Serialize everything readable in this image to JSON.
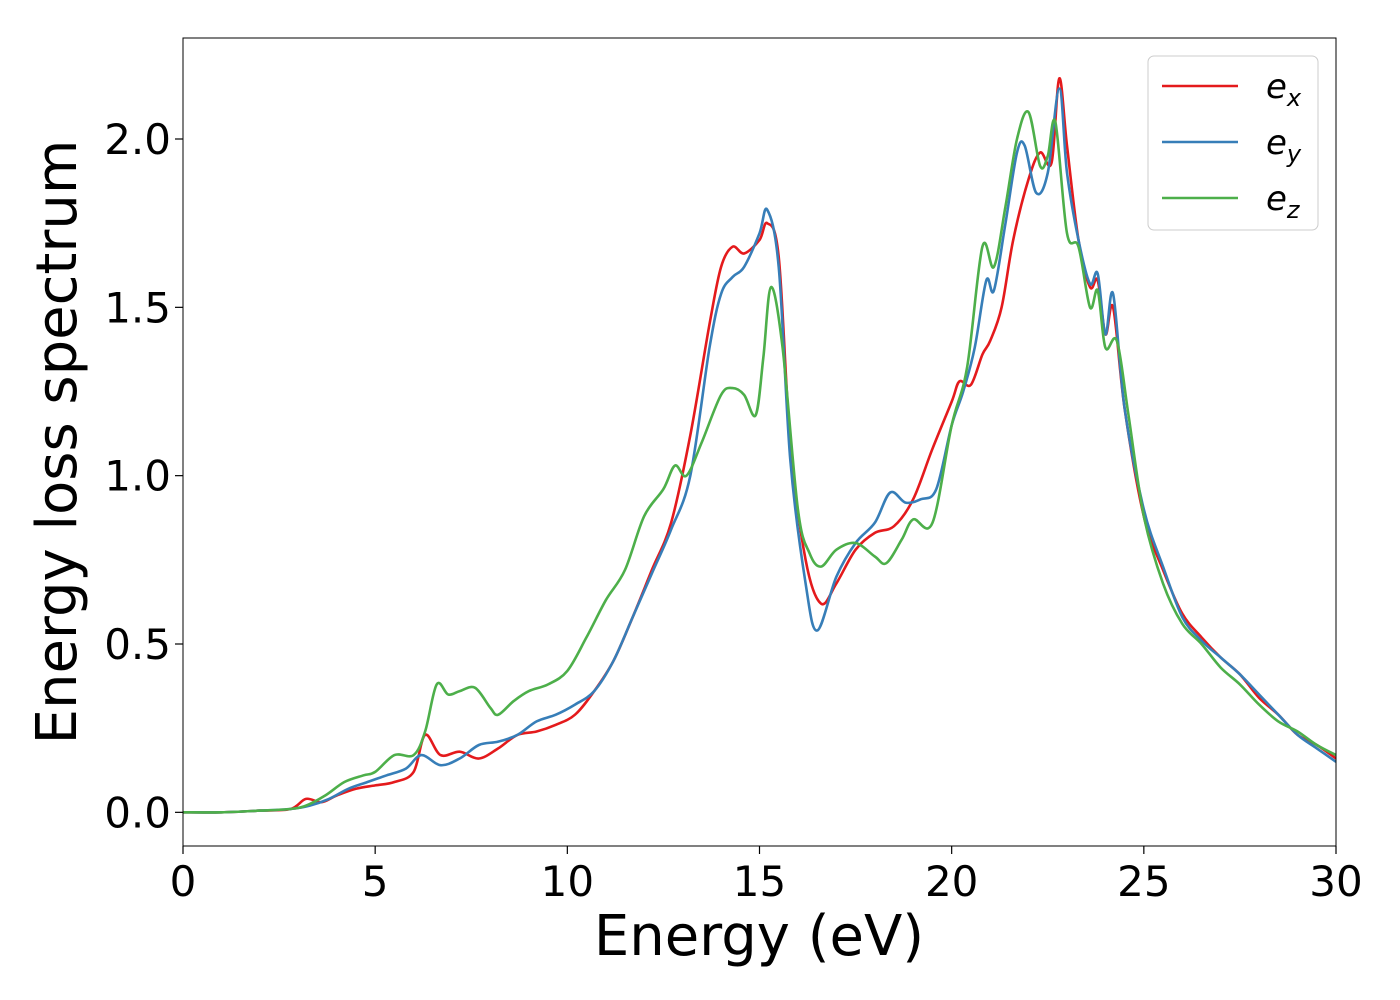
{
  "chart_data": {
    "type": "line",
    "title": "",
    "xlabel": "Energy (eV)",
    "ylabel": "Energy loss spectrum",
    "xlim": [
      0,
      30
    ],
    "ylim": [
      -0.1,
      2.3
    ],
    "xticks": [
      0,
      5,
      10,
      15,
      20,
      25,
      30
    ],
    "xtick_labels": [
      "0",
      "5",
      "10",
      "15",
      "20",
      "25",
      "30"
    ],
    "yticks": [
      0.0,
      0.5,
      1.0,
      1.5,
      2.0
    ],
    "ytick_labels": [
      "0.0",
      "0.5",
      "1.0",
      "1.5",
      "2.0"
    ],
    "grid": false,
    "legend_position": "top-right",
    "series": [
      {
        "name": "e_x",
        "legend_main": "e",
        "legend_sub": "x",
        "color": "#e41a1c",
        "x": [
          0,
          1,
          2,
          2.8,
          3.2,
          3.6,
          4.0,
          4.5,
          5.0,
          5.5,
          6.0,
          6.3,
          6.7,
          7.2,
          7.7,
          8.2,
          8.7,
          9.2,
          9.7,
          10.2,
          10.7,
          11.2,
          11.7,
          12.2,
          12.7,
          13.2,
          13.7,
          14.0,
          14.3,
          14.6,
          15.0,
          15.2,
          15.5,
          15.8,
          16.2,
          16.6,
          17.0,
          17.5,
          18.0,
          18.5,
          19.0,
          19.5,
          20.0,
          20.2,
          20.5,
          20.8,
          21.0,
          21.3,
          21.6,
          22.0,
          22.3,
          22.6,
          22.8,
          23.0,
          23.3,
          23.6,
          23.8,
          24.0,
          24.2,
          24.5,
          25.0,
          25.5,
          26.0,
          26.5,
          27.0,
          27.5,
          28.0,
          28.5,
          29.0,
          29.5,
          30.0
        ],
        "values": [
          0.0,
          0.0,
          0.005,
          0.01,
          0.04,
          0.03,
          0.05,
          0.07,
          0.08,
          0.09,
          0.12,
          0.23,
          0.17,
          0.18,
          0.16,
          0.19,
          0.23,
          0.24,
          0.26,
          0.29,
          0.36,
          0.45,
          0.58,
          0.72,
          0.86,
          1.12,
          1.45,
          1.62,
          1.68,
          1.66,
          1.7,
          1.75,
          1.65,
          1.1,
          0.75,
          0.62,
          0.68,
          0.78,
          0.83,
          0.85,
          0.93,
          1.08,
          1.22,
          1.28,
          1.27,
          1.36,
          1.4,
          1.5,
          1.7,
          1.88,
          1.96,
          1.93,
          2.18,
          1.98,
          1.7,
          1.56,
          1.58,
          1.42,
          1.5,
          1.2,
          0.88,
          0.72,
          0.59,
          0.52,
          0.46,
          0.41,
          0.34,
          0.29,
          0.23,
          0.2,
          0.16
        ]
      },
      {
        "name": "e_y",
        "legend_main": "e",
        "legend_sub": "y",
        "color": "#377eb8",
        "x": [
          0,
          1,
          2,
          2.8,
          3.3,
          3.8,
          4.3,
          4.8,
          5.3,
          5.8,
          6.2,
          6.7,
          7.2,
          7.7,
          8.2,
          8.7,
          9.2,
          9.7,
          10.2,
          10.7,
          11.2,
          11.7,
          12.2,
          12.7,
          13.2,
          13.7,
          14.0,
          14.3,
          14.6,
          15.0,
          15.2,
          15.5,
          15.8,
          16.2,
          16.5,
          17.0,
          17.5,
          18.0,
          18.4,
          18.8,
          19.2,
          19.6,
          20.0,
          20.3,
          20.6,
          20.9,
          21.1,
          21.4,
          21.7,
          21.9,
          22.2,
          22.5,
          22.8,
          23.0,
          23.3,
          23.6,
          23.8,
          24.0,
          24.2,
          24.5,
          25.0,
          25.5,
          26.0,
          26.5,
          27.0,
          27.5,
          28.0,
          28.5,
          29.0,
          29.5,
          30.0
        ],
        "values": [
          0.0,
          0.0,
          0.005,
          0.01,
          0.02,
          0.04,
          0.07,
          0.09,
          0.11,
          0.13,
          0.17,
          0.14,
          0.16,
          0.2,
          0.21,
          0.23,
          0.27,
          0.29,
          0.32,
          0.36,
          0.45,
          0.58,
          0.71,
          0.84,
          1.0,
          1.38,
          1.54,
          1.59,
          1.62,
          1.72,
          1.79,
          1.62,
          1.05,
          0.68,
          0.54,
          0.7,
          0.8,
          0.86,
          0.95,
          0.92,
          0.93,
          0.96,
          1.15,
          1.25,
          1.38,
          1.58,
          1.55,
          1.75,
          1.96,
          1.98,
          1.84,
          1.9,
          2.15,
          1.9,
          1.7,
          1.57,
          1.6,
          1.42,
          1.54,
          1.2,
          0.9,
          0.73,
          0.58,
          0.51,
          0.46,
          0.41,
          0.35,
          0.29,
          0.23,
          0.19,
          0.15
        ]
      },
      {
        "name": "e_z",
        "legend_main": "e",
        "legend_sub": "z",
        "color": "#4daf4a",
        "x": [
          0,
          1,
          2,
          2.8,
          3.2,
          3.7,
          4.2,
          4.7,
          5.0,
          5.5,
          6.0,
          6.3,
          6.6,
          6.9,
          7.2,
          7.6,
          8.0,
          8.2,
          8.6,
          9.0,
          9.5,
          10.0,
          10.5,
          11.0,
          11.5,
          12.0,
          12.5,
          12.8,
          13.1,
          13.5,
          14.0,
          14.3,
          14.6,
          14.9,
          15.1,
          15.3,
          15.6,
          16.0,
          16.3,
          16.6,
          17.0,
          17.5,
          18.0,
          18.3,
          18.7,
          19.0,
          19.5,
          20.0,
          20.4,
          20.8,
          21.1,
          21.4,
          21.7,
          22.0,
          22.3,
          22.5,
          22.7,
          23.0,
          23.3,
          23.6,
          23.8,
          24.0,
          24.3,
          24.6,
          25.0,
          25.5,
          26.0,
          26.5,
          27.0,
          27.5,
          28.0,
          28.5,
          29.0,
          29.5,
          30.0
        ],
        "values": [
          0.0,
          0.0,
          0.005,
          0.01,
          0.02,
          0.05,
          0.09,
          0.11,
          0.12,
          0.17,
          0.17,
          0.24,
          0.38,
          0.35,
          0.36,
          0.37,
          0.31,
          0.29,
          0.33,
          0.36,
          0.38,
          0.42,
          0.52,
          0.63,
          0.72,
          0.88,
          0.96,
          1.03,
          1.0,
          1.1,
          1.24,
          1.26,
          1.24,
          1.18,
          1.35,
          1.56,
          1.38,
          0.9,
          0.77,
          0.73,
          0.78,
          0.8,
          0.76,
          0.74,
          0.81,
          0.87,
          0.86,
          1.15,
          1.32,
          1.68,
          1.62,
          1.8,
          2.0,
          2.08,
          1.92,
          1.95,
          2.05,
          1.72,
          1.68,
          1.5,
          1.55,
          1.38,
          1.4,
          1.18,
          0.88,
          0.68,
          0.56,
          0.5,
          0.43,
          0.38,
          0.32,
          0.27,
          0.24,
          0.2,
          0.17
        ]
      }
    ]
  }
}
